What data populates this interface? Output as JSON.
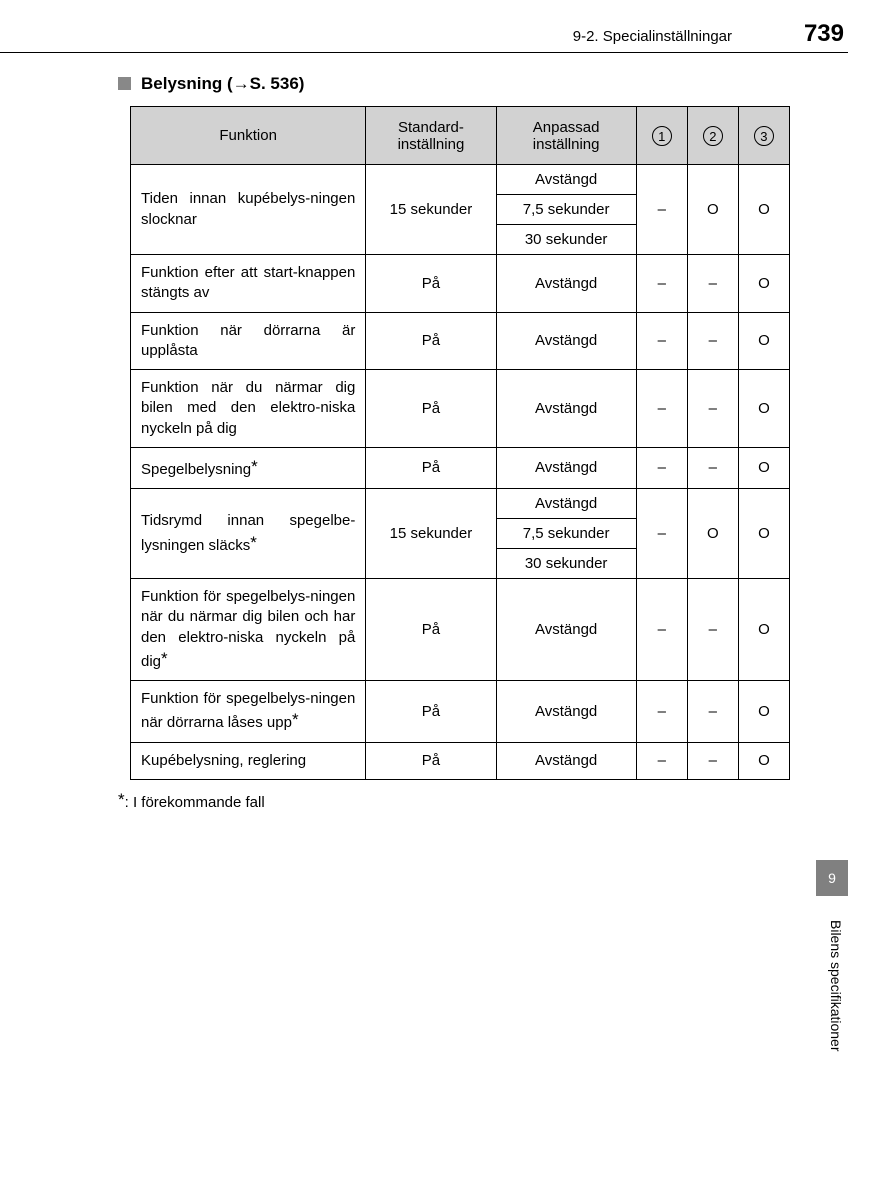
{
  "header": {
    "breadcrumb": "9-2. Specialinställningar",
    "page_number": "739"
  },
  "section": {
    "title_prefix": "Belysning (",
    "arrow": "→",
    "title_ref": "S. 536)",
    "full_title": "Belysning (→S. 536)"
  },
  "table": {
    "columns": {
      "funktion": "Funktion",
      "standard": "Standard-\ninställning",
      "anpassad": "Anpassad\ninställning",
      "c1": "1",
      "c2": "2",
      "c3": "3"
    },
    "col_widths": {
      "funktion": 235,
      "standard": 130,
      "anpassad": 140,
      "circ": 51
    },
    "header_bg": "#d2d2d2",
    "border_color": "#000000",
    "rows": [
      {
        "funktion": "Tiden innan kupébelys-ningen slocknar",
        "standard": "15 sekunder",
        "anpassad": [
          "Avstängd",
          "7,5 sekunder",
          "30 sekunder"
        ],
        "c1": "–",
        "c2": "O",
        "c3": "O",
        "star": false
      },
      {
        "funktion": "Funktion efter att start-knappen stängts av",
        "standard": "På",
        "anpassad": [
          "Avstängd"
        ],
        "c1": "–",
        "c2": "–",
        "c3": "O",
        "star": false
      },
      {
        "funktion": "Funktion när dörrarna är upplåsta",
        "standard": "På",
        "anpassad": [
          "Avstängd"
        ],
        "c1": "–",
        "c2": "–",
        "c3": "O",
        "star": false
      },
      {
        "funktion": "Funktion när du närmar dig bilen med den elektro-niska nyckeln på dig",
        "standard": "På",
        "anpassad": [
          "Avstängd"
        ],
        "c1": "–",
        "c2": "–",
        "c3": "O",
        "star": false
      },
      {
        "funktion": "Spegelbelysning",
        "standard": "På",
        "anpassad": [
          "Avstängd"
        ],
        "c1": "–",
        "c2": "–",
        "c3": "O",
        "star": true
      },
      {
        "funktion": "Tidsrymd innan spegelbe-lysningen släcks",
        "standard": "15 sekunder",
        "anpassad": [
          "Avstängd",
          "7,5 sekunder",
          "30 sekunder"
        ],
        "c1": "–",
        "c2": "O",
        "c3": "O",
        "star": true
      },
      {
        "funktion": "Funktion för spegelbelys-ningen när du närmar dig bilen och har den elektro-niska nyckeln på dig",
        "standard": "På",
        "anpassad": [
          "Avstängd"
        ],
        "c1": "–",
        "c2": "–",
        "c3": "O",
        "star": true
      },
      {
        "funktion": "Funktion för spegelbelys-ningen när dörrarna låses upp",
        "standard": "På",
        "anpassad": [
          "Avstängd"
        ],
        "c1": "–",
        "c2": "–",
        "c3": "O",
        "star": true
      },
      {
        "funktion": "Kupébelysning, reglering",
        "standard": "På",
        "anpassad": [
          "Avstängd"
        ],
        "c1": "–",
        "c2": "–",
        "c3": "O",
        "star": false
      }
    ]
  },
  "footnote": {
    "marker": "*",
    "text": ": I förekommande fall"
  },
  "side": {
    "tab": "9",
    "label": "Bilens specifikationer"
  }
}
